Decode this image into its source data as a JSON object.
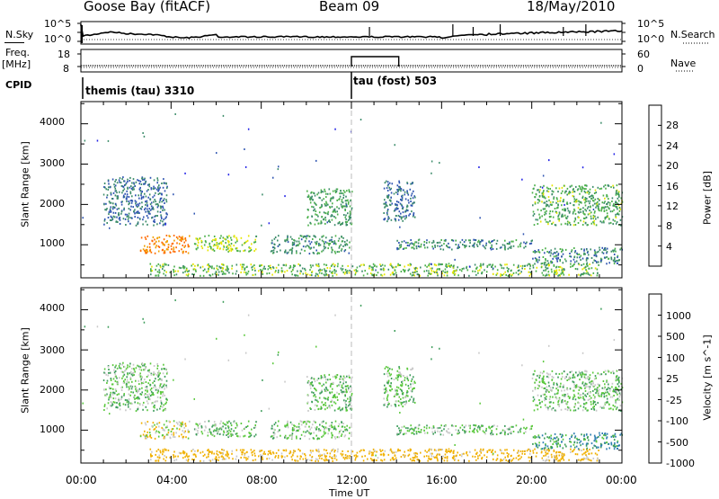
{
  "header": {
    "station": "Goose Bay (fitACF)",
    "beam": "Beam 09",
    "date": "18/May/2010"
  },
  "left_labels": {
    "nsky": "N.Sky",
    "freq": "Freq.",
    "freq_unit": "[MHz]",
    "cpid": "CPID"
  },
  "right_labels": {
    "nsearch": "N.Search",
    "nave": "Nave"
  },
  "noise_panel": {
    "left_ticks": [
      "10^5",
      "10^0"
    ],
    "right_ticks": [
      "10^5",
      "10^0"
    ]
  },
  "freq_panel": {
    "left_ticks": [
      "18",
      "8"
    ],
    "right_ticks": [
      "60",
      "0"
    ]
  },
  "cpid_panel": {
    "segments": [
      {
        "label": "themis (tau) 3310",
        "start_hour": 0
      },
      {
        "label": "tau (fost) 503",
        "start_hour": 12
      }
    ]
  },
  "x_axis": {
    "ticks": [
      "00:00",
      "04:00",
      "08:00",
      "12:00",
      "16:00",
      "20:00",
      "00:00"
    ],
    "label": "Time UT"
  },
  "power_panel": {
    "ylabel": "Slant Range [km]",
    "yticks": [
      "1000",
      "2000",
      "3000",
      "4000"
    ],
    "colorbar_label": "Power [dB]",
    "colorbar_ticks": [
      "4",
      "8",
      "12",
      "16",
      "20",
      "24",
      "28"
    ],
    "colors": [
      "#1f1fe6",
      "#2e54b0",
      "#3c8c6a",
      "#4bb04a",
      "#e6e600",
      "#f0a000",
      "#ff6a00",
      "#e00000"
    ]
  },
  "velocity_panel": {
    "ylabel": "Slant Range [km]",
    "yticks": [
      "1000",
      "2000",
      "3000",
      "4000"
    ],
    "colorbar_label": "Velocity [m s^-1]",
    "colorbar_ticks": [
      "1000",
      "500",
      "100",
      "25",
      "-25",
      "-100",
      "-500",
      "-1000"
    ],
    "colors": [
      "#1f4fb4",
      "#2e7fb0",
      "#3c9c5a",
      "#5ac83c",
      "#c8c8c8",
      "#f0b000",
      "#ff7a00",
      "#e00000"
    ]
  },
  "chart_data": {
    "type": "heatmap",
    "x_range_hours": [
      0,
      24
    ],
    "y_range_km": [
      180,
      4550
    ],
    "scatter_regions": [
      {
        "t0": 1.0,
        "t1": 3.8,
        "r0": 1500,
        "r1": 2700,
        "power": 6,
        "velocity": 0
      },
      {
        "t0": 2.6,
        "t1": 4.8,
        "r0": 800,
        "r1": 1250,
        "power": 22,
        "velocity": -50
      },
      {
        "t0": 5.0,
        "t1": 7.8,
        "r0": 850,
        "r1": 1250,
        "power": 14,
        "velocity": 0
      },
      {
        "t0": 8.4,
        "t1": 11.9,
        "r0": 800,
        "r1": 1250,
        "power": 9,
        "velocity": 0
      },
      {
        "t0": 10.0,
        "t1": 12.0,
        "r0": 1500,
        "r1": 2400,
        "power": 10,
        "velocity": 0
      },
      {
        "t0": 14.0,
        "t1": 20.0,
        "r0": 900,
        "r1": 1150,
        "power": 8,
        "velocity": 0
      },
      {
        "t0": 13.4,
        "t1": 14.8,
        "r0": 1600,
        "r1": 2600,
        "power": 6,
        "velocity": 0
      },
      {
        "t0": 20.0,
        "t1": 24.0,
        "r0": 1500,
        "r1": 2500,
        "power": 11,
        "velocity": 0
      },
      {
        "t0": 3.0,
        "t1": 23.0,
        "r0": 250,
        "r1": 550,
        "power": 12,
        "velocity": -100
      },
      {
        "t0": 20.0,
        "t1": 24.0,
        "r0": 550,
        "r1": 950,
        "power": 8,
        "velocity": 60
      }
    ]
  }
}
